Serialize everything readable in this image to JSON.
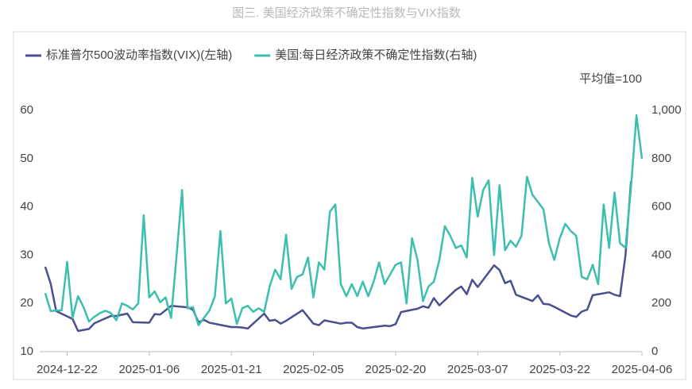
{
  "chart_data": {
    "type": "line",
    "title": "图三. 美国经济政策不确定性指数与VIX指数",
    "annotation": "平均值=100",
    "xlim": [
      "2024-12-17",
      "2025-04-06"
    ],
    "xticks": [
      "2024-12-22",
      "2025-01-06",
      "2025-01-21",
      "2025-02-05",
      "2025-02-20",
      "2025-03-07",
      "2025-03-22",
      "2025-04-06"
    ],
    "ylim": [
      10,
      60
    ],
    "yticks": [
      10,
      20,
      30,
      40,
      50,
      60
    ],
    "y2lim": [
      0,
      1000
    ],
    "y2ticks": [
      0,
      200,
      400,
      600,
      800,
      {
        "value": 1000,
        "label": "1,000"
      }
    ],
    "series": [
      {
        "name": "标准普尔500波动率指数(VIX)(左轴)",
        "color": "#4a4f8f",
        "axis": "y",
        "x": [
          "2024-12-18",
          "2024-12-19",
          "2024-12-20",
          "2024-12-23",
          "2024-12-24",
          "2024-12-26",
          "2024-12-27",
          "2024-12-30",
          "2024-12-31",
          "2025-01-02",
          "2025-01-03",
          "2025-01-06",
          "2025-01-07",
          "2025-01-08",
          "2025-01-10",
          "2025-01-13",
          "2025-01-14",
          "2025-01-15",
          "2025-01-16",
          "2025-01-17",
          "2025-01-21",
          "2025-01-22",
          "2025-01-23",
          "2025-01-24",
          "2025-01-27",
          "2025-01-28",
          "2025-01-29",
          "2025-01-30",
          "2025-01-31",
          "2025-02-03",
          "2025-02-04",
          "2025-02-05",
          "2025-02-06",
          "2025-02-07",
          "2025-02-10",
          "2025-02-11",
          "2025-02-12",
          "2025-02-13",
          "2025-02-14",
          "2025-02-18",
          "2025-02-19",
          "2025-02-20",
          "2025-02-21",
          "2025-02-24",
          "2025-02-25",
          "2025-02-26",
          "2025-02-27",
          "2025-02-28",
          "2025-03-03",
          "2025-03-04",
          "2025-03-05",
          "2025-03-06",
          "2025-03-07",
          "2025-03-10",
          "2025-03-11",
          "2025-03-12",
          "2025-03-13",
          "2025-03-14",
          "2025-03-17",
          "2025-03-18",
          "2025-03-19",
          "2025-03-20",
          "2025-03-21",
          "2025-03-24",
          "2025-03-25",
          "2025-03-26",
          "2025-03-27",
          "2025-03-28",
          "2025-03-31",
          "2025-04-01",
          "2025-04-02",
          "2025-04-03",
          "2025-04-04"
        ],
        "values": [
          27.6,
          24.1,
          18.4,
          16.8,
          14.3,
          14.7,
          15.9,
          17.4,
          17.4,
          17.9,
          16.1,
          16.0,
          17.8,
          17.7,
          19.5,
          19.2,
          18.7,
          16.1,
          16.6,
          16.0,
          15.1,
          15.1,
          15.0,
          14.8,
          17.9,
          16.4,
          16.6,
          15.8,
          16.4,
          18.6,
          17.2,
          15.8,
          15.5,
          16.5,
          15.8,
          16.0,
          16.0,
          15.1,
          14.8,
          15.4,
          15.3,
          15.7,
          18.2,
          18.9,
          19.4,
          19.1,
          21.1,
          19.6,
          22.8,
          23.5,
          21.9,
          24.9,
          23.4,
          27.9,
          26.9,
          24.2,
          24.7,
          21.8,
          20.5,
          21.7,
          19.9,
          19.8,
          19.3,
          17.5,
          17.2,
          18.3,
          18.7,
          21.7,
          22.3,
          21.8,
          21.5,
          30.0,
          45.3
        ]
      },
      {
        "name": "美国:每日经济政策不确定性指数(右轴)",
        "color": "#3dbfae",
        "axis": "y2",
        "x": [
          "2024-12-18",
          "2024-12-19",
          "2024-12-20",
          "2024-12-21",
          "2024-12-22",
          "2024-12-23",
          "2024-12-24",
          "2024-12-25",
          "2024-12-26",
          "2024-12-27",
          "2024-12-28",
          "2024-12-29",
          "2024-12-30",
          "2024-12-31",
          "2025-01-01",
          "2025-01-02",
          "2025-01-03",
          "2025-01-04",
          "2025-01-05",
          "2025-01-06",
          "2025-01-07",
          "2025-01-08",
          "2025-01-09",
          "2025-01-10",
          "2025-01-11",
          "2025-01-12",
          "2025-01-13",
          "2025-01-14",
          "2025-01-15",
          "2025-01-16",
          "2025-01-17",
          "2025-01-18",
          "2025-01-19",
          "2025-01-20",
          "2025-01-21",
          "2025-01-22",
          "2025-01-23",
          "2025-01-24",
          "2025-01-25",
          "2025-01-26",
          "2025-01-27",
          "2025-01-28",
          "2025-01-29",
          "2025-01-30",
          "2025-01-31",
          "2025-02-01",
          "2025-02-02",
          "2025-02-03",
          "2025-02-04",
          "2025-02-05",
          "2025-02-06",
          "2025-02-07",
          "2025-02-08",
          "2025-02-09",
          "2025-02-10",
          "2025-02-11",
          "2025-02-12",
          "2025-02-13",
          "2025-02-14",
          "2025-02-15",
          "2025-02-16",
          "2025-02-17",
          "2025-02-18",
          "2025-02-19",
          "2025-02-20",
          "2025-02-21",
          "2025-02-22",
          "2025-02-23",
          "2025-02-24",
          "2025-02-25",
          "2025-02-26",
          "2025-02-27",
          "2025-02-28",
          "2025-03-01",
          "2025-03-02",
          "2025-03-03",
          "2025-03-04",
          "2025-03-05",
          "2025-03-06",
          "2025-03-07",
          "2025-03-08",
          "2025-03-09",
          "2025-03-10",
          "2025-03-11",
          "2025-03-12",
          "2025-03-13",
          "2025-03-14",
          "2025-03-15",
          "2025-03-16",
          "2025-03-17",
          "2025-03-18",
          "2025-03-19",
          "2025-03-20",
          "2025-03-21",
          "2025-03-22",
          "2025-03-23",
          "2025-03-24",
          "2025-03-25",
          "2025-03-26",
          "2025-03-27",
          "2025-03-28",
          "2025-03-29",
          "2025-03-30",
          "2025-03-31",
          "2025-04-01",
          "2025-04-02",
          "2025-04-03",
          "2025-04-04",
          "2025-04-05",
          "2025-04-06"
        ],
        "values": [
          243,
          168,
          171,
          171,
          372,
          140,
          230,
          185,
          125,
          145,
          160,
          170,
          160,
          130,
          200,
          190,
          175,
          200,
          565,
          225,
          250,
          205,
          225,
          140,
          400,
          670,
          180,
          185,
          110,
          140,
          170,
          230,
          500,
          200,
          220,
          115,
          180,
          190,
          165,
          180,
          165,
          270,
          340,
          300,
          485,
          260,
          310,
          320,
          390,
          225,
          370,
          340,
          580,
          610,
          280,
          230,
          280,
          230,
          290,
          230,
          290,
          370,
          280,
          320,
          360,
          370,
          200,
          470,
          380,
          210,
          270,
          290,
          380,
          520,
          480,
          430,
          440,
          390,
          720,
          560,
          670,
          710,
          400,
          690,
          420,
          460,
          435,
          480,
          725,
          650,
          620,
          590,
          450,
          380,
          470,
          530,
          500,
          480,
          310,
          300,
          360,
          280,
          610,
          430,
          660,
          450,
          430,
          680,
          980,
          800
        ]
      }
    ]
  }
}
